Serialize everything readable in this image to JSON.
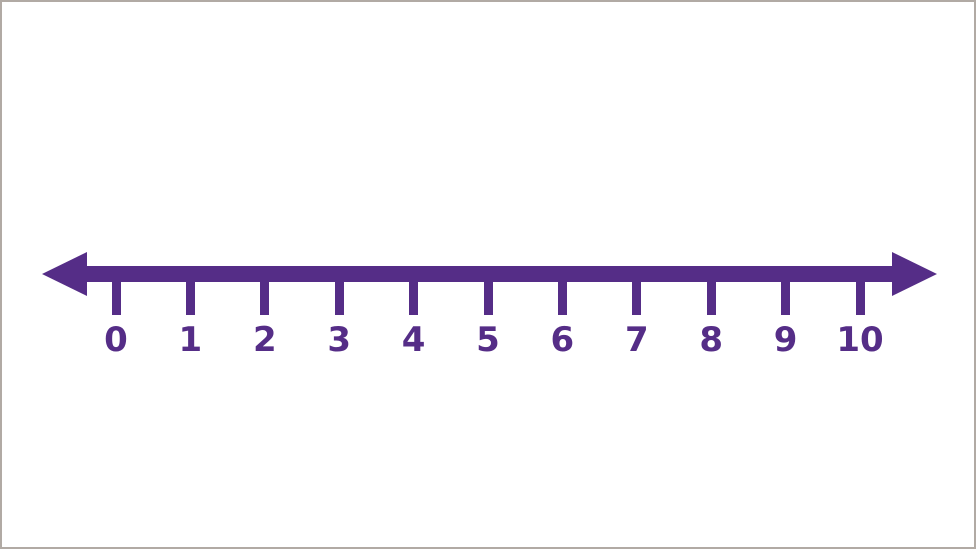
{
  "figure": {
    "type": "number_line",
    "min": 0,
    "max": 10,
    "step": 1,
    "tick_labels": [
      "0",
      "1",
      "2",
      "3",
      "4",
      "5",
      "6",
      "7",
      "8",
      "9",
      "10"
    ],
    "line_color": "#552d87",
    "background_color": "#ffffff",
    "border_color": "#b1aaa4"
  }
}
